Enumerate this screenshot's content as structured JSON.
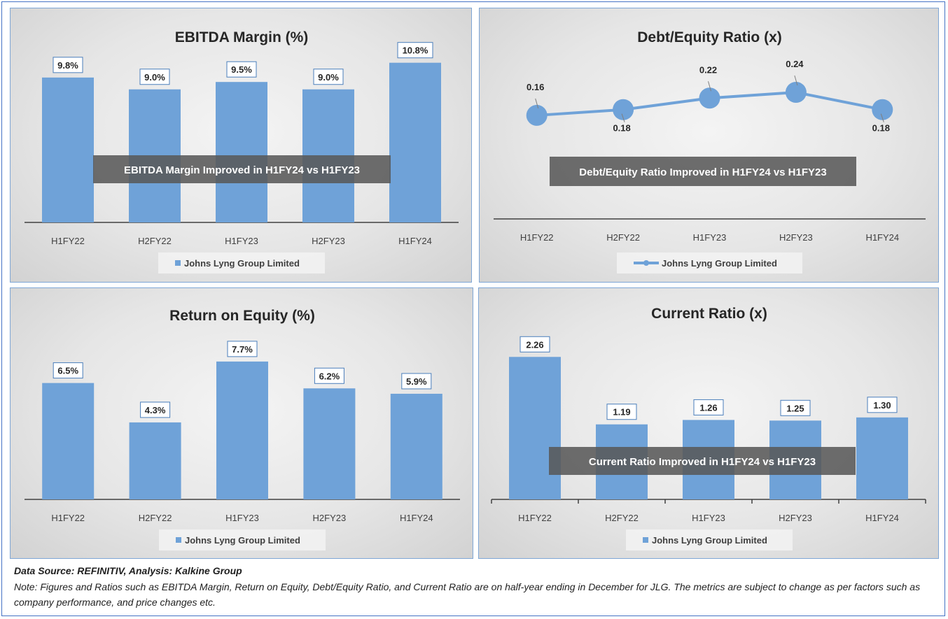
{
  "footer": {
    "source": "Data Source: REFINITIV, Analysis: Kalkine Group",
    "note": "Note: Figures and Ratios such as EBITDA Margin, Return on Equity, Debt/Equity Ratio, and Current Ratio are on half-year ending in December for JLG. The metrics are subject to change as per factors such as company performance, and price changes etc."
  },
  "chart_data": [
    {
      "id": "ebitda",
      "type": "bar",
      "title": "EBITDA Margin (%)",
      "categories": [
        "H1FY22",
        "H2FY22",
        "H1FY23",
        "H2FY23",
        "H1FY24"
      ],
      "series": [
        {
          "name": "Johns Lyng Group Limited",
          "values": [
            9.8,
            9.0,
            9.5,
            9.0,
            10.8
          ]
        }
      ],
      "data_labels": [
        "9.8%",
        "9.0%",
        "9.5%",
        "9.0%",
        "10.8%"
      ],
      "ylim": [
        0,
        12.3
      ],
      "annotation": "EBITDA Margin Improved in H1FY24 vs H1FY23",
      "legend_position": "bottom",
      "grid": false,
      "color": "#6fa2d8"
    },
    {
      "id": "de",
      "type": "line",
      "title": "Debt/Equity Ratio (x)",
      "categories": [
        "H1FY22",
        "H2FY22",
        "H1FY23",
        "H2FY23",
        "H1FY24"
      ],
      "series": [
        {
          "name": "Johns Lyng Group Limited",
          "values": [
            0.16,
            0.18,
            0.22,
            0.24,
            0.18
          ]
        }
      ],
      "data_labels": [
        "0.16",
        "0.18",
        "0.22",
        "0.24",
        "0.18"
      ],
      "ylim": [
        -0.2,
        0.42
      ],
      "annotation": "Debt/Equity Ratio Improved in H1FY24 vs H1FY23",
      "legend_position": "bottom",
      "grid": false,
      "color": "#6fa2d8"
    },
    {
      "id": "roe",
      "type": "bar",
      "title": "Return on Equity (%)",
      "categories": [
        "H1FY22",
        "H2FY22",
        "H1FY23",
        "H2FY23",
        "H1FY24"
      ],
      "series": [
        {
          "name": "Johns Lyng Group Limited",
          "values": [
            6.5,
            4.3,
            7.7,
            6.2,
            5.9
          ]
        }
      ],
      "data_labels": [
        "6.5%",
        "4.3%",
        "7.7%",
        "6.2%",
        "5.9%"
      ],
      "ylim": [
        0,
        10
      ],
      "annotation": "",
      "legend_position": "bottom",
      "grid": false,
      "color": "#6fa2d8"
    },
    {
      "id": "cr",
      "type": "bar",
      "title": "Current Ratio (x)",
      "categories": [
        "H1FY22",
        "H2FY22",
        "H1FY23",
        "H2FY23",
        "H1FY24"
      ],
      "series": [
        {
          "name": "Johns Lyng Group Limited",
          "values": [
            2.26,
            1.19,
            1.26,
            1.25,
            1.3
          ]
        }
      ],
      "data_labels": [
        "2.26",
        "1.19",
        "1.26",
        "1.25",
        "1.30"
      ],
      "ylim": [
        0,
        2.84
      ],
      "annotation": "Current Ratio Improved in H1FY24 vs H1FY23",
      "legend_position": "bottom",
      "grid": false,
      "color": "#6fa2d8"
    }
  ]
}
